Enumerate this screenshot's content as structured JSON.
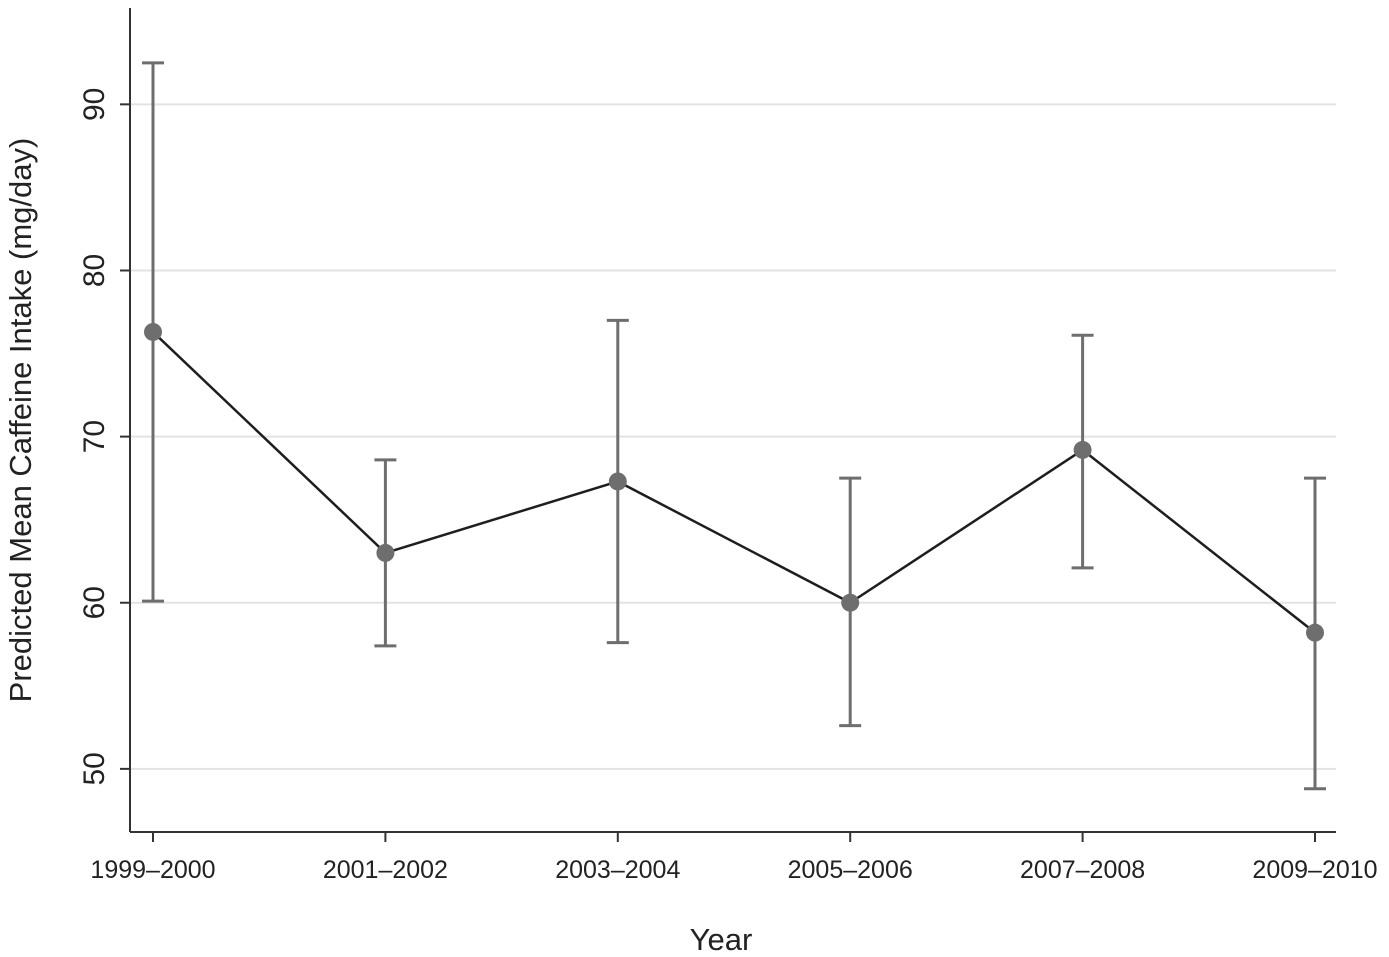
{
  "chart_data": {
    "type": "line",
    "title": "",
    "xlabel": "Year",
    "ylabel": "Predicted Mean Caffeine Intake (mg/day)",
    "categories": [
      "1999–2000",
      "2001–2002",
      "2003–2004",
      "2005–2006",
      "2007–2008",
      "2009–2010"
    ],
    "series": [
      {
        "values": [
          76.3,
          63.0,
          67.3,
          60.0,
          69.2,
          58.2
        ],
        "ci_lower": [
          60.1,
          57.4,
          57.6,
          52.6,
          62.1,
          48.8
        ],
        "ci_upper": [
          92.5,
          68.6,
          77.0,
          67.5,
          76.1,
          67.5
        ]
      }
    ],
    "yticks": [
      50,
      60,
      70,
      80,
      90
    ],
    "ylim": [
      46.2,
      95.8
    ],
    "grid": true,
    "gridlines": "horizontal",
    "legend": "none",
    "colors": {
      "line": "#1e1e1e",
      "marker": "#6e6e6e",
      "error_bar": "#6e6e6e",
      "grid": "#e3e3e3",
      "axis": "#333333"
    }
  }
}
